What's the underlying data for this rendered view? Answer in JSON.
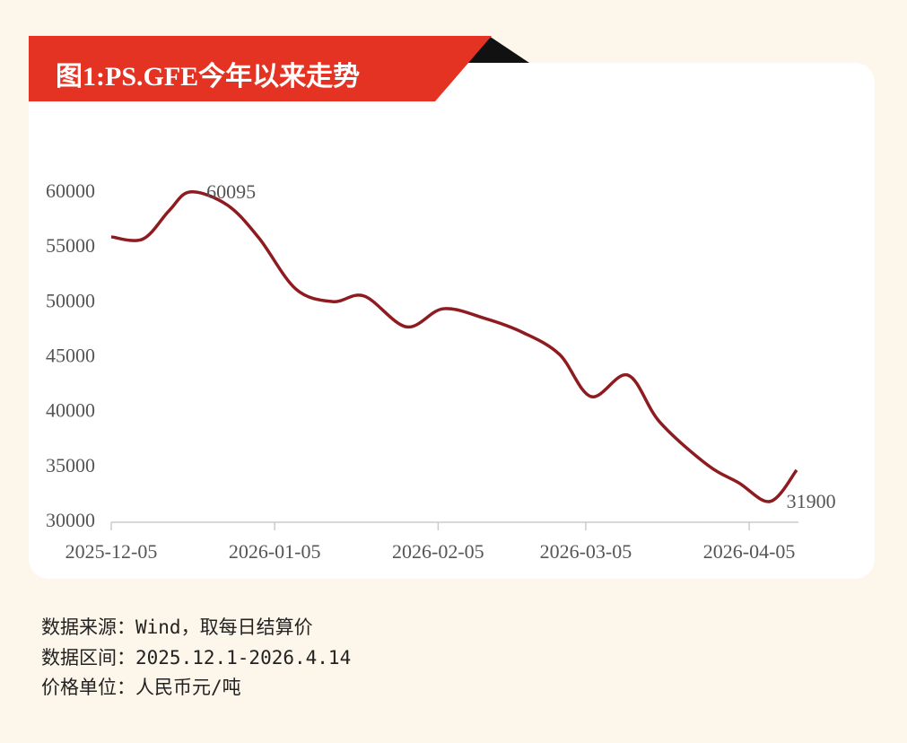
{
  "chart_data": {
    "type": "line",
    "title": "图1:PS.GFE今年以来走势",
    "x": [
      "2025-12-05",
      "2025-12-11",
      "2025-12-16",
      "2025-12-20",
      "2025-12-27",
      "2026-01-02",
      "2026-01-09",
      "2026-01-16",
      "2026-01-22",
      "2026-01-30",
      "2026-02-06",
      "2026-02-14",
      "2026-02-21",
      "2026-02-28",
      "2026-03-06",
      "2026-03-13",
      "2026-03-19",
      "2026-03-28",
      "2026-04-03",
      "2026-04-09",
      "2026-04-14"
    ],
    "series": [
      {
        "color": "#8e1b1f",
        "values": [
          56000,
          55800,
          58400,
          60095,
          58900,
          55900,
          51250,
          50100,
          50600,
          47800,
          49450,
          48550,
          47300,
          45300,
          41450,
          43400,
          39150,
          35250,
          33600,
          31900,
          34750
        ]
      }
    ],
    "annotated_points": [
      3,
      19
    ],
    "xlim": [
      "2025-12-05",
      "2026-04-14"
    ],
    "xticks": [
      "2025-12-05",
      "2026-01-05",
      "2026-02-05",
      "2026-03-05",
      "2026-04-05"
    ],
    "ylim": [
      30000,
      60000
    ],
    "yticks": [
      30000,
      35000,
      40000,
      45000,
      50000,
      55000,
      60000
    ],
    "grid": false
  },
  "notes": [
    "数据来源：Wind，取每日结算价",
    "数据区间：2025.12.1-2026.4.14",
    "价格单位：人民币元/吨"
  ]
}
